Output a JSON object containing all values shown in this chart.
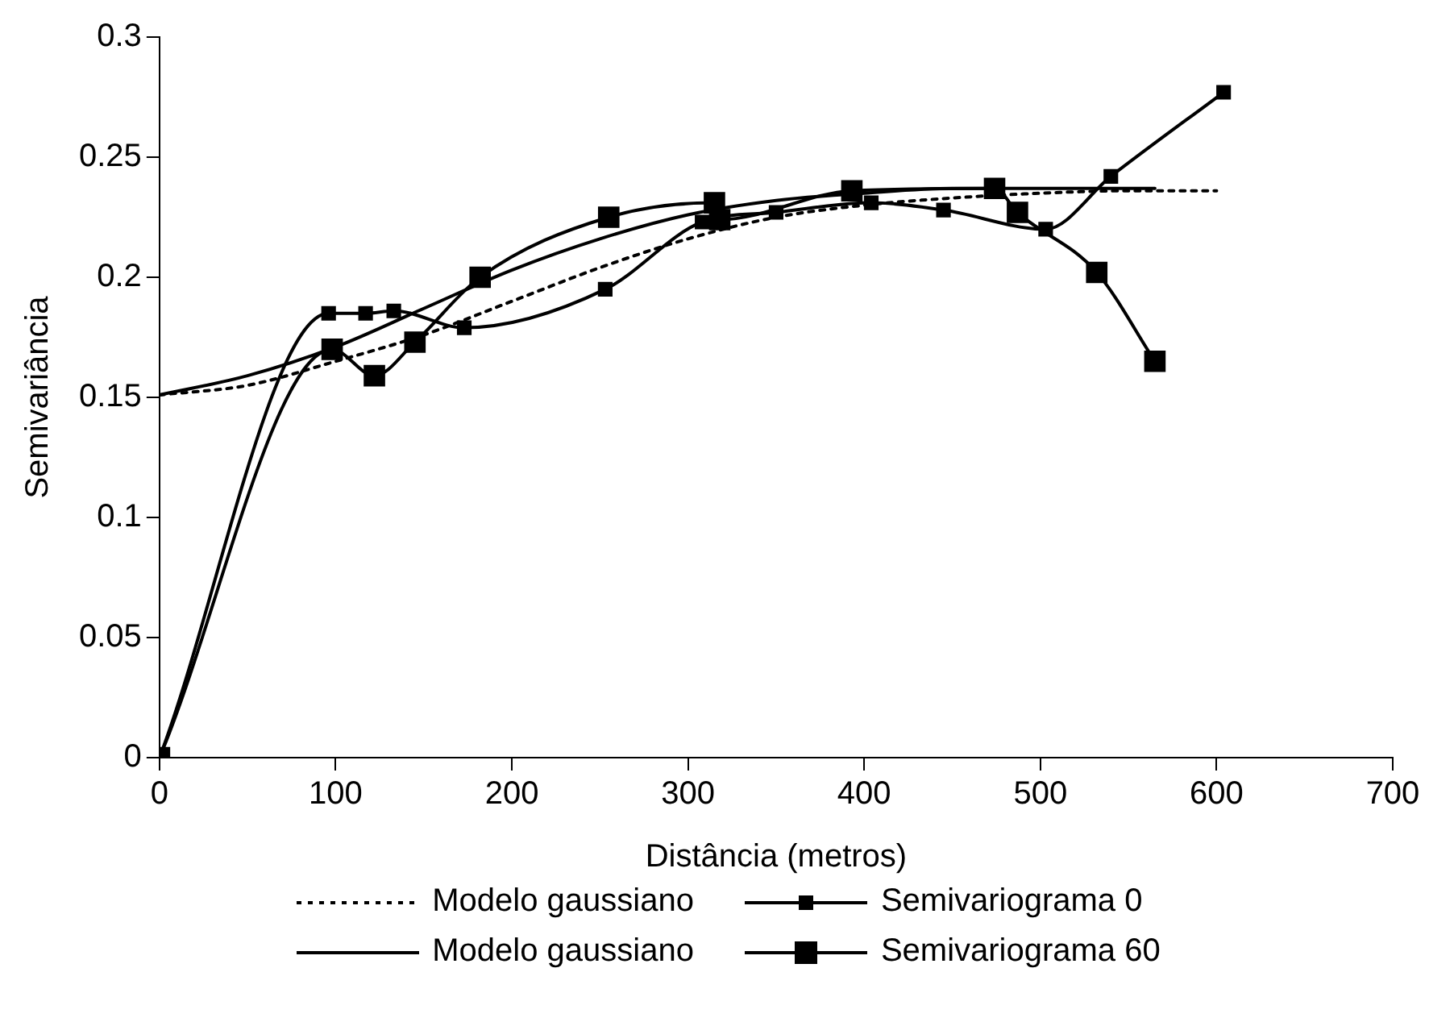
{
  "chart_data": {
    "type": "line",
    "xlabel": "Distância (metros)",
    "ylabel": "Semivariância",
    "xlim": [
      0,
      700
    ],
    "xticks": [
      0,
      100,
      200,
      300,
      400,
      500,
      600,
      700
    ],
    "ylim": [
      0,
      0.3
    ],
    "yticks": [
      0,
      0.05,
      0.1,
      0.15,
      0.2,
      0.25,
      0.3
    ],
    "grid": false,
    "legend": "bottom",
    "series": [
      {
        "name": "Modelo gaussiano",
        "color": "#000000",
        "marker": "none",
        "line_style": "dotted",
        "x": [
          0,
          50,
          100,
          150,
          200,
          250,
          300,
          350,
          400,
          450,
          500,
          550,
          600
        ],
        "values": [
          0.151,
          0.155,
          0.165,
          0.176,
          0.19,
          0.204,
          0.216,
          0.225,
          0.23,
          0.233,
          0.235,
          0.236,
          0.236
        ]
      },
      {
        "name": "Semivariograma 0",
        "color": "#000000",
        "marker": "square",
        "line_style": "solid",
        "x": [
          0,
          96,
          117,
          133,
          173,
          253,
          308,
          350,
          404,
          445,
          503,
          540,
          604
        ],
        "values": [
          0,
          0.185,
          0.185,
          0.186,
          0.179,
          0.195,
          0.223,
          0.227,
          0.231,
          0.228,
          0.22,
          0.242,
          0.277
        ]
      },
      {
        "name": "Modelo gaussiano",
        "color": "#000000",
        "marker": "none",
        "line_style": "solid",
        "x": [
          0,
          50,
          100,
          150,
          200,
          250,
          300,
          350,
          400,
          450,
          500,
          565
        ],
        "values": [
          0.151,
          0.159,
          0.171,
          0.187,
          0.203,
          0.216,
          0.226,
          0.232,
          0.235,
          0.237,
          0.237,
          0.237
        ]
      },
      {
        "name": "Semivariograma 60",
        "color": "#000000",
        "marker": "square",
        "line_style": "solid",
        "x": [
          0,
          98,
          122,
          145,
          182,
          255,
          315,
          318,
          393,
          474,
          487,
          532,
          565
        ],
        "values": [
          0,
          0.17,
          0.159,
          0.173,
          0.2,
          0.225,
          0.231,
          0.224,
          0.236,
          0.237,
          0.227,
          0.202,
          0.165
        ]
      }
    ]
  }
}
